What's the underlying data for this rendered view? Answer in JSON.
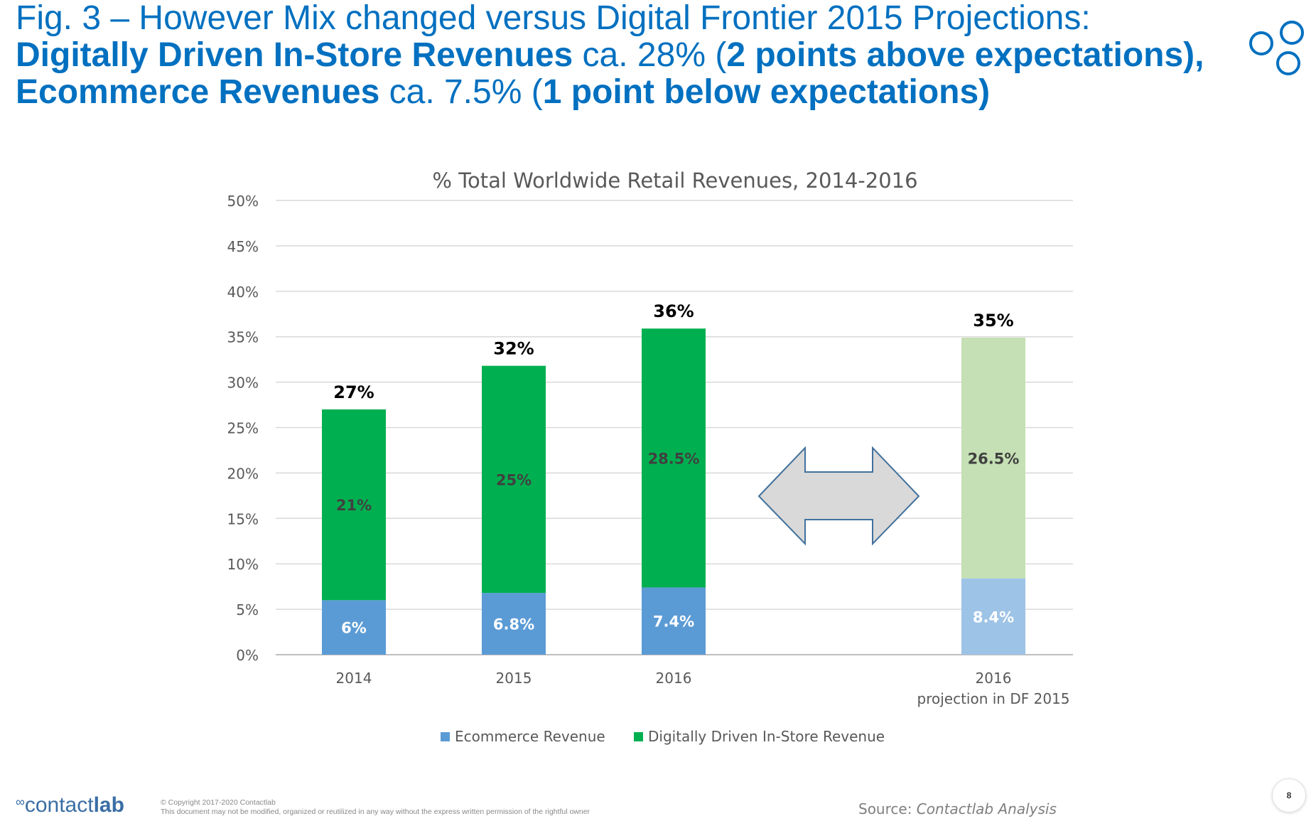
{
  "slide": {
    "title_line1": "Fig. 3 – However Mix changed versus Digital Frontier 2015 Projections:",
    "title_line2_bold": "Digitally Driven In-Store Revenues",
    "title_line2_mid": " ca. 28% (",
    "title_line2_bold2": "2 points above expectations),",
    "title_line3_bold": "Ecommerce Revenues",
    "title_line3_mid": " ca. 7.5% (",
    "title_line3_bold2": "1 point below expectations)"
  },
  "chart_data": {
    "type": "bar",
    "stacked": true,
    "title": "% Total Worldwide Retail Revenues, 2014-2016",
    "categories": [
      "2014",
      "2015",
      "2016",
      "2016\nprojection in DF 2015"
    ],
    "series": [
      {
        "name": "Ecommerce Revenue",
        "values": [
          6,
          6.8,
          7.4,
          8.4
        ],
        "labels": [
          "6%",
          "6.8%",
          "7.4%",
          "8.4%"
        ]
      },
      {
        "name": "Digitally Driven In-Store Revenue",
        "values": [
          21,
          25,
          28.5,
          26.5
        ],
        "labels": [
          "21%",
          "25%",
          "28.5%",
          "26.5%"
        ]
      }
    ],
    "totals": [
      "27%",
      "32%",
      "36%",
      "35%"
    ],
    "ylim": [
      0,
      50
    ],
    "yticks": [
      "0%",
      "5%",
      "10%",
      "15%",
      "20%",
      "25%",
      "30%",
      "35%",
      "40%",
      "45%",
      "50%"
    ],
    "grid": true,
    "legend": "bottom",
    "colors": {
      "ecommerce": "#5b9bd5",
      "instore": "#00b050",
      "ecommerce_projection": "#9dc3e6",
      "instore_projection": "#c5e0b4",
      "arrow_fill": "#d9d9d9",
      "arrow_stroke": "#41719c"
    }
  },
  "footer": {
    "brand_light": "contact",
    "brand_bold": "lab",
    "copyright_line1": "© Copyright 2017-2020 Contactlab",
    "copyright_line2": "This document may not be modified, organized or reutilized in any way without the express written permission of the rightful owner",
    "source_label": "Source: ",
    "source_value": "Contactlab Analysis",
    "page_number": "8"
  }
}
